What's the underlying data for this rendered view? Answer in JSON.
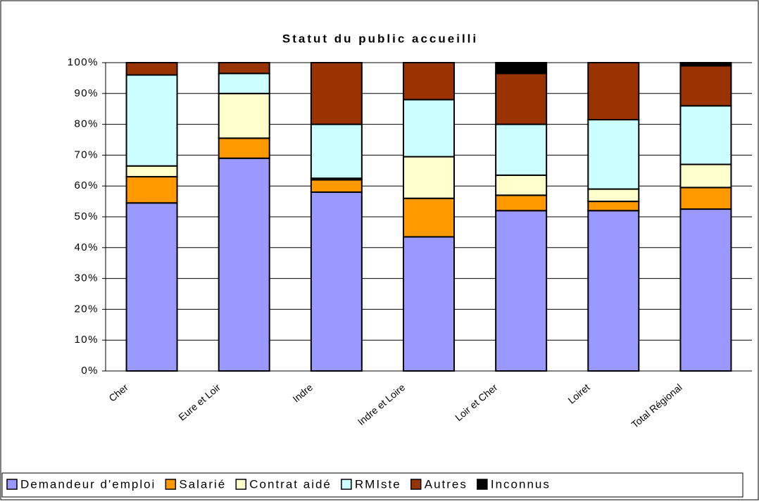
{
  "chart_data": {
    "type": "stacked_bar_100",
    "title": "Statut du public accueilli",
    "categories": [
      "Cher",
      "Eure et Loir",
      "Indre",
      "Indre et Loire",
      "Loir et Cher",
      "Loiret",
      "Total Régional"
    ],
    "series": [
      {
        "name": "Demandeur d'emploi",
        "color": "#9999ff",
        "values": [
          54.5,
          69,
          58,
          43.5,
          52,
          52,
          52.5
        ]
      },
      {
        "name": "Salarié",
        "color": "#ff9900",
        "values": [
          8.5,
          6.5,
          4,
          12.5,
          5,
          3,
          7
        ]
      },
      {
        "name": "Contrat aidé",
        "color": "#ffffcc",
        "values": [
          3.5,
          14.5,
          0.5,
          13.5,
          6.5,
          4,
          7.5
        ]
      },
      {
        "name": "RMIste",
        "color": "#ccffff",
        "values": [
          29.5,
          6.5,
          17.5,
          18.5,
          16.5,
          22.5,
          19
        ]
      },
      {
        "name": "Autres",
        "color": "#993300",
        "values": [
          4,
          3.5,
          20,
          12,
          16.5,
          18.5,
          13
        ]
      },
      {
        "name": "Inconnus",
        "color": "#000000",
        "values": [
          0,
          0,
          0,
          0,
          3.5,
          0,
          1
        ]
      }
    ],
    "ylim": [
      0,
      100
    ],
    "yticks": [
      {
        "value": 0,
        "label": "0%"
      },
      {
        "value": 10,
        "label": "10%"
      },
      {
        "value": 20,
        "label": "20%"
      },
      {
        "value": 30,
        "label": "30%"
      },
      {
        "value": 40,
        "label": "40%"
      },
      {
        "value": 50,
        "label": "50%"
      },
      {
        "value": 60,
        "label": "60%"
      },
      {
        "value": 70,
        "label": "70%"
      },
      {
        "value": 80,
        "label": "80%"
      },
      {
        "value": 90,
        "label": "90%"
      },
      {
        "value": 100,
        "label": "100%"
      }
    ],
    "grid": true,
    "legend": "bottom"
  }
}
